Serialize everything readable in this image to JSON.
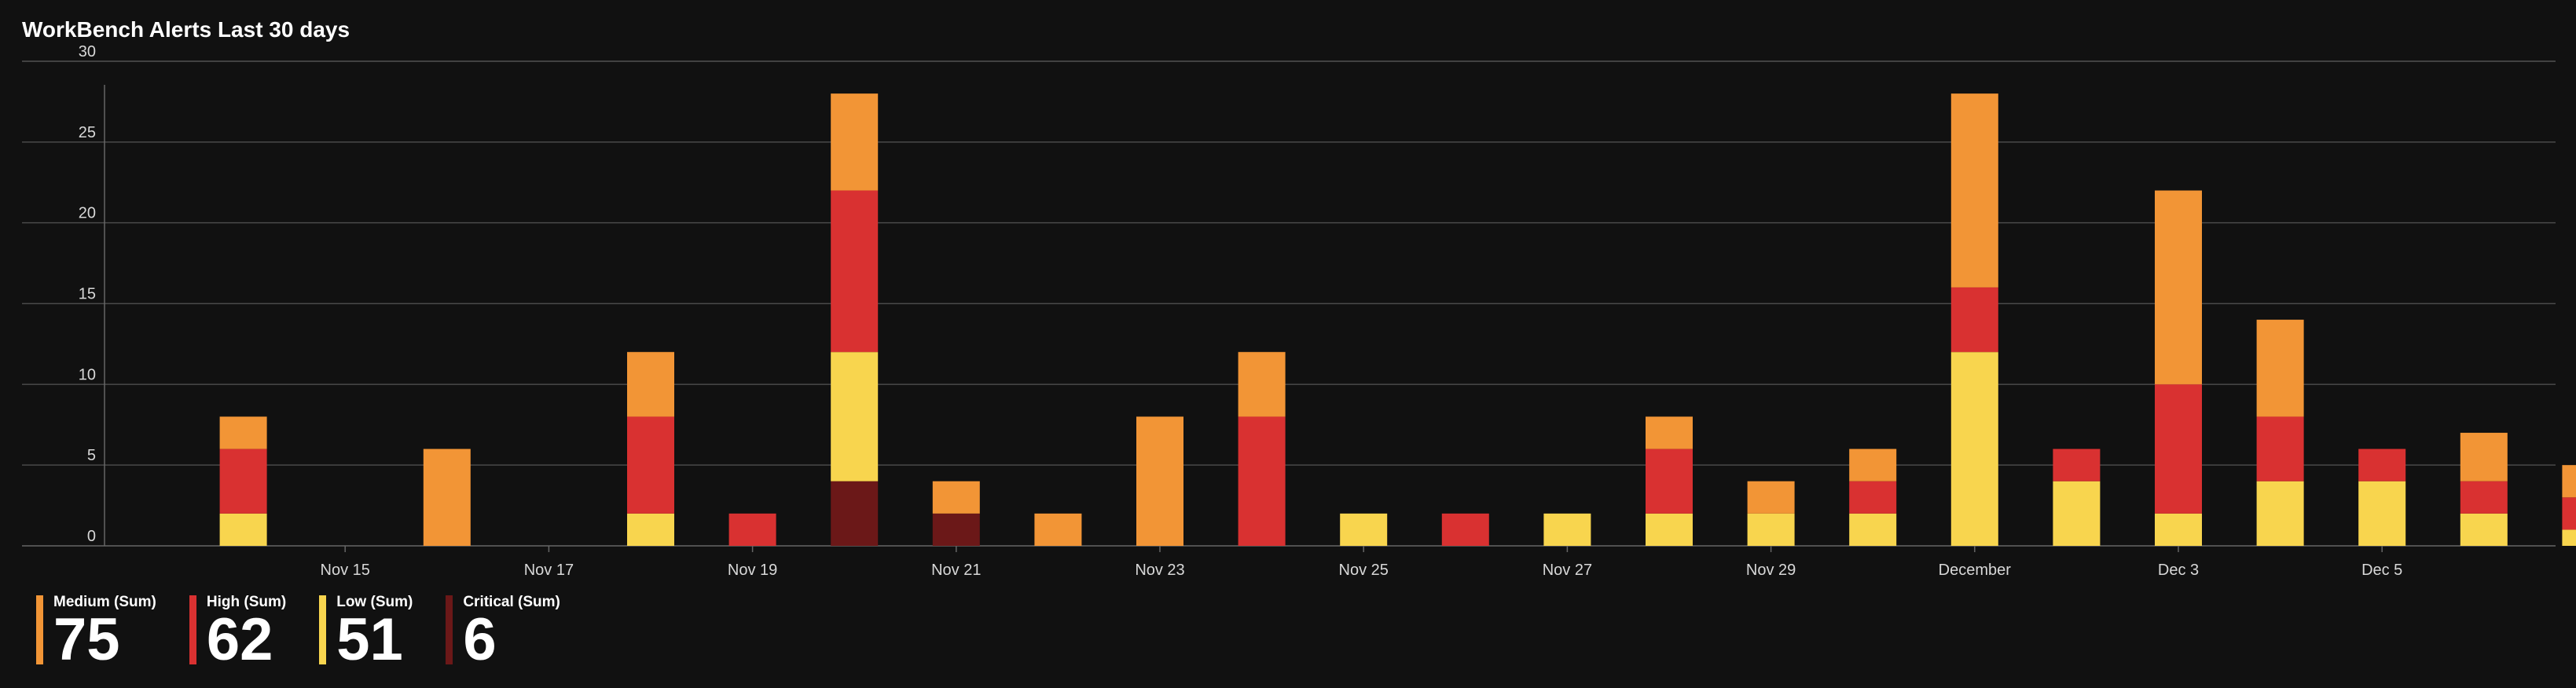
{
  "title": "WorkBench Alerts Last 30 days",
  "colors": {
    "Medium": "#f29536",
    "High": "#d93131",
    "Low": "#f8d54e",
    "Critical": "#6b1818",
    "grid": "#4a4a4a",
    "axis": "#666666"
  },
  "legend": [
    {
      "label": "Medium (Sum)",
      "value": "75",
      "color": "#f29536"
    },
    {
      "label": "High (Sum)",
      "value": "62",
      "color": "#d93131"
    },
    {
      "label": "Low (Sum)",
      "value": "51",
      "color": "#f8d54e"
    },
    {
      "label": "Critical (Sum)",
      "value": "6",
      "color": "#6b1818"
    }
  ],
  "chart_data": {
    "type": "bar",
    "stacked": true,
    "title": "WorkBench Alerts Last 30 days",
    "xlabel": "",
    "ylabel": "",
    "ylim": [
      0,
      30
    ],
    "yticks": [
      0,
      5,
      10,
      15,
      20,
      25,
      30
    ],
    "grid": true,
    "legend_position": "bottom-left",
    "x_start": "2023-11-13",
    "x_end": "2023-12-07",
    "x_tick_labels": [
      {
        "date": "2023-11-15",
        "label": "Nov 15"
      },
      {
        "date": "2023-11-17",
        "label": "Nov 17"
      },
      {
        "date": "2023-11-19",
        "label": "Nov 19"
      },
      {
        "date": "2023-11-21",
        "label": "Nov 21"
      },
      {
        "date": "2023-11-23",
        "label": "Nov 23"
      },
      {
        "date": "2023-11-25",
        "label": "Nov 25"
      },
      {
        "date": "2023-11-27",
        "label": "Nov 27"
      },
      {
        "date": "2023-11-29",
        "label": "Nov 29"
      },
      {
        "date": "2023-12-01",
        "label": "December"
      },
      {
        "date": "2023-12-03",
        "label": "Dec 3"
      },
      {
        "date": "2023-12-05",
        "label": "Dec 5"
      }
    ],
    "series_order": [
      "Critical",
      "Low",
      "High",
      "Medium"
    ],
    "bars": [
      {
        "date": "2023-11-14",
        "Low": 2,
        "High": 4,
        "Medium": 2
      },
      {
        "date": "2023-11-16",
        "Medium": 6
      },
      {
        "date": "2023-11-18",
        "Low": 2,
        "High": 6,
        "Medium": 4
      },
      {
        "date": "2023-11-19",
        "High": 2
      },
      {
        "date": "2023-11-20",
        "Critical": 4,
        "Low": 8,
        "High": 10,
        "Medium": 6
      },
      {
        "date": "2023-11-21",
        "Critical": 2,
        "Medium": 2
      },
      {
        "date": "2023-11-22",
        "Medium": 2
      },
      {
        "date": "2023-11-23",
        "Medium": 8
      },
      {
        "date": "2023-11-24",
        "High": 8,
        "Medium": 4
      },
      {
        "date": "2023-11-25",
        "Low": 2
      },
      {
        "date": "2023-11-26",
        "High": 2
      },
      {
        "date": "2023-11-27",
        "Low": 2
      },
      {
        "date": "2023-11-28",
        "Low": 2,
        "High": 4,
        "Medium": 2
      },
      {
        "date": "2023-11-29",
        "Low": 2,
        "Medium": 2
      },
      {
        "date": "2023-11-30",
        "Low": 2,
        "High": 2,
        "Medium": 2
      },
      {
        "date": "2023-12-01",
        "Low": 12,
        "High": 4,
        "Medium": 12
      },
      {
        "date": "2023-12-02",
        "Low": 4,
        "High": 2
      },
      {
        "date": "2023-12-03",
        "Low": 2,
        "High": 8,
        "Medium": 12
      },
      {
        "date": "2023-12-04",
        "Low": 4,
        "High": 4,
        "Medium": 6
      },
      {
        "date": "2023-12-05",
        "Low": 4,
        "High": 2
      },
      {
        "date": "2023-12-06",
        "Low": 2,
        "High": 2,
        "Medium": 3
      },
      {
        "date": "2023-12-07",
        "Low": 1,
        "High": 2,
        "Medium": 2
      }
    ]
  }
}
